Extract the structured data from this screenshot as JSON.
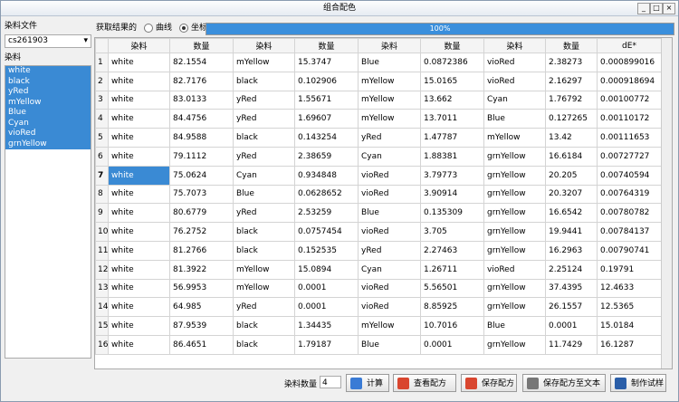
{
  "window": {
    "title": "组合配色"
  },
  "left_panel": {
    "file_label": "染料文件",
    "file_value": "cs261903",
    "dye_label": "染料",
    "dyes": [
      "white",
      "black",
      "yRed",
      "mYellow",
      "Blue",
      "Cyan",
      "vioRed",
      "grnYellow"
    ]
  },
  "toolbar": {
    "result_label": "获取结果的",
    "radio_curve": "曲线",
    "radio_coord": "坐标",
    "progress": "100%"
  },
  "table": {
    "headers": [
      "染料",
      "数量",
      "染料",
      "数量",
      "染料",
      "数量",
      "染料",
      "数量",
      "dE*"
    ],
    "rows": [
      [
        "1",
        "white",
        "82.1554",
        "mYellow",
        "15.3747",
        "Blue",
        "0.0872386",
        "vioRed",
        "2.38273",
        "0.000899016"
      ],
      [
        "2",
        "white",
        "82.7176",
        "black",
        "0.102906",
        "mYellow",
        "15.0165",
        "vioRed",
        "2.16297",
        "0.000918694"
      ],
      [
        "3",
        "white",
        "83.0133",
        "yRed",
        "1.55671",
        "mYellow",
        "13.662",
        "Cyan",
        "1.76792",
        "0.00100772"
      ],
      [
        "4",
        "white",
        "84.4756",
        "yRed",
        "1.69607",
        "mYellow",
        "13.7011",
        "Blue",
        "0.127265",
        "0.00110172"
      ],
      [
        "5",
        "white",
        "84.9588",
        "black",
        "0.143254",
        "yRed",
        "1.47787",
        "mYellow",
        "13.42",
        "0.00111653"
      ],
      [
        "6",
        "white",
        "79.1112",
        "yRed",
        "2.38659",
        "Cyan",
        "1.88381",
        "grnYellow",
        "16.6184",
        "0.00727727"
      ],
      [
        "7",
        "white",
        "75.0624",
        "Cyan",
        "0.934848",
        "vioRed",
        "3.79773",
        "grnYellow",
        "20.205",
        "0.00740594"
      ],
      [
        "8",
        "white",
        "75.7073",
        "Blue",
        "0.0628652",
        "vioRed",
        "3.90914",
        "grnYellow",
        "20.3207",
        "0.00764319"
      ],
      [
        "9",
        "white",
        "80.6779",
        "yRed",
        "2.53259",
        "Blue",
        "0.135309",
        "grnYellow",
        "16.6542",
        "0.00780782"
      ],
      [
        "10",
        "white",
        "76.2752",
        "black",
        "0.0757454",
        "vioRed",
        "3.705",
        "grnYellow",
        "19.9441",
        "0.00784137"
      ],
      [
        "11",
        "white",
        "81.2766",
        "black",
        "0.152535",
        "yRed",
        "2.27463",
        "grnYellow",
        "16.2963",
        "0.00790741"
      ],
      [
        "12",
        "white",
        "81.3922",
        "mYellow",
        "15.0894",
        "Cyan",
        "1.26711",
        "vioRed",
        "2.25124",
        "0.19791"
      ],
      [
        "13",
        "white",
        "56.9953",
        "mYellow",
        "0.0001",
        "vioRed",
        "5.56501",
        "grnYellow",
        "37.4395",
        "12.4633"
      ],
      [
        "14",
        "white",
        "64.985",
        "yRed",
        "0.0001",
        "vioRed",
        "8.85925",
        "grnYellow",
        "26.1557",
        "12.5365"
      ],
      [
        "15",
        "white",
        "87.9539",
        "black",
        "1.34435",
        "mYellow",
        "10.7016",
        "Blue",
        "0.0001",
        "15.0184"
      ],
      [
        "16",
        "white",
        "86.4651",
        "black",
        "1.79187",
        "Blue",
        "0.0001",
        "grnYellow",
        "11.7429",
        "16.1287"
      ]
    ]
  },
  "bottom": {
    "count_label": "染料数量",
    "count_value": "4",
    "buttons": [
      "计算",
      "查看配方",
      "保存配方",
      "保存配方至文本",
      "制作试样"
    ]
  }
}
